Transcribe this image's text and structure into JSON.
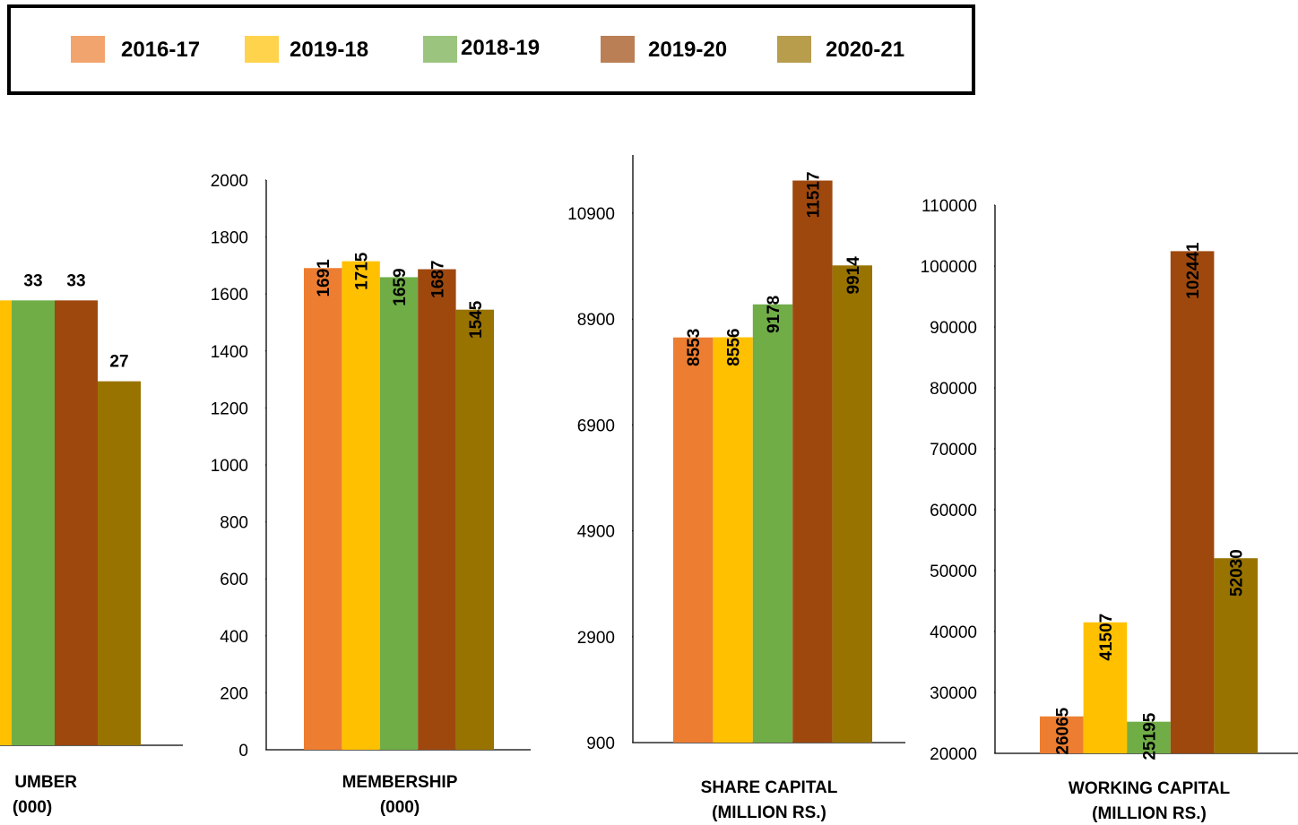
{
  "legend": [
    {
      "name": "2016-17",
      "color": "#ED7D31"
    },
    {
      "name": "2019-18",
      "color": "#FFC000"
    },
    {
      "name": "2018-19",
      "color": "#70AD47"
    },
    {
      "name": "2019-20",
      "color": "#9E480E"
    },
    {
      "name": "2020-21",
      "color": "#997300"
    }
  ],
  "chart_data": [
    {
      "type": "bar",
      "title": [
        "UMBER",
        "(000)"
      ],
      "values": [
        null,
        33,
        33,
        33,
        27
      ],
      "ylim": [
        0,
        40
      ]
    },
    {
      "type": "bar",
      "title": [
        "MEMBERSHIP",
        "(000)"
      ],
      "values": [
        1691,
        1715,
        1659,
        1687,
        1545
      ],
      "ylim": [
        0,
        2000
      ],
      "yticks": [
        0,
        200,
        400,
        600,
        800,
        1000,
        1200,
        1400,
        1600,
        1800,
        2000
      ]
    },
    {
      "type": "bar",
      "title": [
        "SHARE CAPITAL",
        "(MILLION RS.)"
      ],
      "values": [
        8553,
        8556,
        9178,
        11517,
        9914
      ],
      "ylim": [
        900,
        12000
      ],
      "yticks": [
        900,
        2900,
        4900,
        6900,
        8900,
        10900
      ]
    },
    {
      "type": "bar",
      "title": [
        "WORKING CAPITAL",
        "(MILLION RS.)"
      ],
      "values": [
        26065,
        41507,
        25195,
        102441,
        52030
      ],
      "ylim": [
        20000,
        110000
      ],
      "yticks": [
        20000,
        30000,
        40000,
        50000,
        60000,
        70000,
        80000,
        90000,
        100000,
        110000
      ]
    }
  ]
}
